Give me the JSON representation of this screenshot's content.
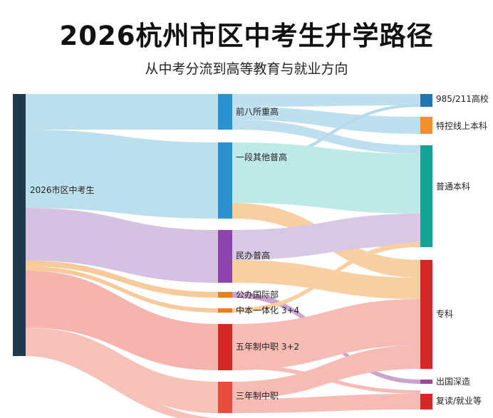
{
  "title": "2026杭州市区中考生升学路径",
  "subtitle": "从中考分流到高等教育与就业方向",
  "nodes": {
    "source": {
      "label": "2026市区中考生",
      "color": "#1f3a4d"
    },
    "mid": [
      {
        "key": "top8",
        "label": "前八所重高",
        "color": "#2a93cf"
      },
      {
        "key": "other",
        "label": "一段其他普高",
        "color": "#2a93cf"
      },
      {
        "key": "private",
        "label": "民办普高",
        "color": "#8e44ad"
      },
      {
        "key": "intl",
        "label": "公办国际部",
        "color": "#e67e22"
      },
      {
        "key": "zbyth",
        "label": "中本一体化 3+4",
        "color": "#e67e22"
      },
      {
        "key": "five",
        "label": "五年制中职 3+2",
        "color": "#d62728"
      },
      {
        "key": "three",
        "label": "三年制中职",
        "color": "#e74c3c"
      }
    ],
    "dest": [
      {
        "key": "d985",
        "label": "985/211高校",
        "color": "#1f77b4"
      },
      {
        "key": "tekong",
        "label": "特控线上本科",
        "color": "#f28e2b"
      },
      {
        "key": "putong",
        "label": "普通本科",
        "color": "#17a094"
      },
      {
        "key": "zhuanke",
        "label": "专科",
        "color": "#d62728"
      },
      {
        "key": "abroad",
        "label": "出国深造",
        "color": "#9b4a9b"
      },
      {
        "key": "work",
        "label": "复读/就业等",
        "color": "#d62728"
      }
    ]
  }
}
